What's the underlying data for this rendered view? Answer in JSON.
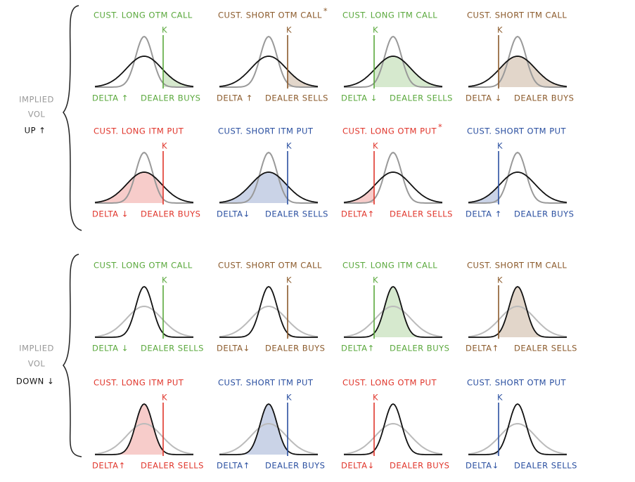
{
  "sections": [
    {
      "label": [
        "IMPLIED",
        "VOL"
      ],
      "direction": "UP ↑",
      "panels": [
        {
          "title": "CUST. LONG OTM CALL",
          "k": "K",
          "delta": "DELTA ↑",
          "dealer": "DEALER BUYS"
        },
        {
          "title": "CUST. SHORT OTM CALL",
          "note": "*",
          "k": "K",
          "delta": "DELTA ↑",
          "dealer": "DEALER SELLS"
        },
        {
          "title": "CUST. LONG ITM CALL",
          "k": "K",
          "delta": "DELTA ↓",
          "dealer": "DEALER SELLS"
        },
        {
          "title": "CUST. SHORT ITM CALL",
          "k": "K",
          "delta": "DELTA ↓",
          "dealer": "DEALER BUYS"
        },
        {
          "title": "CUST. LONG ITM PUT",
          "k": "K",
          "delta": "DELTA ↓",
          "dealer": "DEALER BUYS"
        },
        {
          "title": "CUST. SHORT ITM PUT",
          "k": "K",
          "delta": "DELTA↓",
          "dealer": "DEALER SELLS"
        },
        {
          "title": "CUST. LONG OTM PUT",
          "note": "*",
          "k": "K",
          "delta": "DELTA↑",
          "dealer": "DEALER SELLS"
        },
        {
          "title": "CUST. SHORT OTM PUT",
          "k": "K",
          "delta": "DELTA ↑",
          "dealer": "DEALER BUYS"
        }
      ]
    },
    {
      "label": [
        "IMPLIED",
        "VOL"
      ],
      "direction": "DOWN ↓",
      "panels": [
        {
          "title": "CUST. LONG OTM CALL",
          "k": "K",
          "delta": "DELTA ↓",
          "dealer": "DEALER SELLS"
        },
        {
          "title": "CUST. SHORT OTM CALL",
          "k": "K",
          "delta": "DELTA↓",
          "dealer": "DEALER BUYS"
        },
        {
          "title": "CUST. LONG ITM CALL",
          "k": "K",
          "delta": "DELTA↑",
          "dealer": "DEALER BUYS"
        },
        {
          "title": "CUST. SHORT ITM CALL",
          "k": "K",
          "delta": "DELTA↑",
          "dealer": "DEALER SELLS"
        },
        {
          "title": "CUST. LONG ITM PUT",
          "k": "K",
          "delta": "DELTA↑",
          "dealer": "DEALER SELLS"
        },
        {
          "title": "CUST. SHORT ITM PUT",
          "k": "K",
          "delta": "DELTA↑",
          "dealer": "DEALER BUYS"
        },
        {
          "title": "CUST. LONG OTM PUT",
          "k": "K",
          "delta": "DELTA↓",
          "dealer": "DEALER BUYS"
        },
        {
          "title": "CUST. SHORT OTM PUT",
          "k": "K",
          "delta": "DELTA↓",
          "dealer": "DEALER SELLS"
        }
      ]
    }
  ]
}
